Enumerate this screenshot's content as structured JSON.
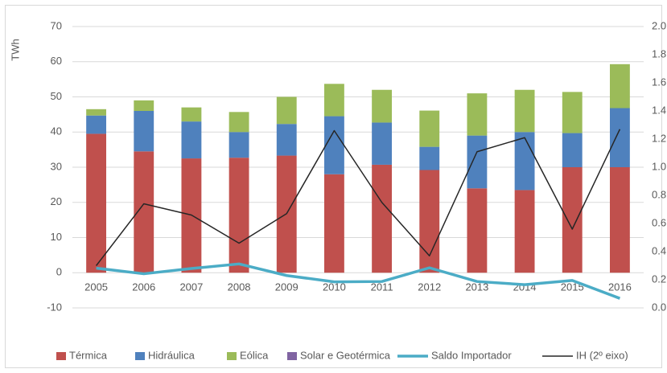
{
  "chart_data": {
    "type": "bar",
    "stacked": true,
    "y_label": "TWh",
    "categories": [
      "2005",
      "2006",
      "2007",
      "2008",
      "2009",
      "2010",
      "2011",
      "2012",
      "2013",
      "2014",
      "2015",
      "2016"
    ],
    "series": [
      {
        "name": "Térmica",
        "type": "bar",
        "color": "#c0504d",
        "values": [
          39.5,
          34.5,
          32.5,
          32.7,
          33.3,
          28,
          30.7,
          29.2,
          24,
          23.5,
          30,
          30
        ]
      },
      {
        "name": "Hidráulica",
        "type": "bar",
        "color": "#4f81bd",
        "values": [
          5.2,
          11.5,
          10.5,
          7.3,
          9,
          16.5,
          12,
          6.6,
          15,
          16.5,
          9.7,
          16.8
        ]
      },
      {
        "name": "Eólica",
        "type": "bar",
        "color": "#9bbb59",
        "values": [
          1.8,
          3,
          4,
          5.7,
          7.7,
          9.2,
          9.3,
          10.3,
          12,
          12,
          11.7,
          12.5
        ]
      },
      {
        "name": "Solar e Geotérmica",
        "type": "bar",
        "color": "#8064a2",
        "values": [
          0,
          0,
          0,
          0,
          0,
          0,
          0,
          0,
          0,
          0,
          0,
          0
        ]
      },
      {
        "name": "Saldo Importador",
        "type": "line",
        "color": "#4bacc6",
        "values": [
          1.3,
          -0.3,
          1.2,
          2.5,
          -0.8,
          -2.6,
          -2.5,
          1.4,
          -2.5,
          -3.4,
          -2.2,
          -7.3
        ]
      },
      {
        "name": "IH (2º eixo)",
        "type": "line",
        "axis": "y2",
        "color": "#262626",
        "values": [
          0.3,
          0.74,
          0.66,
          0.46,
          0.67,
          1.26,
          0.75,
          0.37,
          1.11,
          1.21,
          0.56,
          1.27
        ]
      }
    ],
    "ylim": [
      -10,
      70
    ],
    "yticks": [
      -10,
      0,
      10,
      20,
      30,
      40,
      50,
      60,
      70
    ],
    "y2lim": [
      0,
      2
    ],
    "y2ticks": [
      {
        "value": 0,
        "label": "0.0"
      },
      0.2,
      0.4,
      0.6,
      0.8,
      {
        "value": 1,
        "label": "1.0"
      },
      1.2,
      1.4,
      1.6,
      1.8,
      {
        "value": 2,
        "label": "2.0"
      }
    ],
    "grid": true,
    "legend": "bottom"
  }
}
